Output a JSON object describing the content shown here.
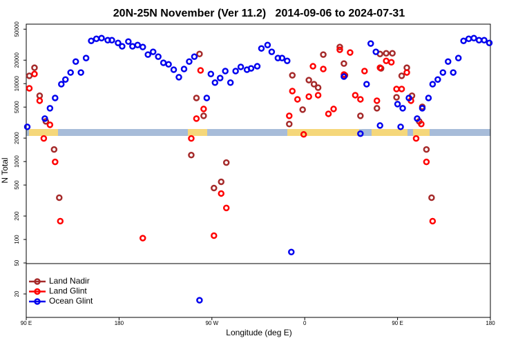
{
  "chart_data": {
    "type": "scatter",
    "title": "20N-25N November (Ver 11.2)   2014-09-06 to 2024-07-31",
    "x_label": "Longitude (deg E)",
    "y_label": "N Total",
    "y_scale": "log",
    "grid": false,
    "legend_position": "lower left",
    "xlim": [
      90,
      540
    ],
    "xticks": [
      {
        "value": 90,
        "label": "90 E"
      },
      180,
      {
        "value": 270,
        "label": "90 W"
      },
      {
        "value": 360,
        "label": "0"
      },
      {
        "value": 450,
        "label": "90 E"
      },
      {
        "value": 540,
        "label": "180"
      }
    ],
    "ylim": [
      10,
      58000
    ],
    "yticks": [
      20,
      50,
      100,
      200,
      500,
      1000,
      2000,
      5000,
      10000,
      20000,
      50000
    ],
    "series": [
      {
        "name": "Land Nadir",
        "color": "#a52a2a",
        "x": [
          93,
          98,
          103,
          109,
          117,
          122,
          258,
          255,
          262,
          250,
          272,
          279,
          284,
          345,
          348,
          358,
          364,
          369,
          373,
          378,
          394,
          398,
          399,
          414,
          430,
          433,
          439,
          445,
          434,
          449,
          454,
          459,
          464,
          474,
          478,
          483,
          471
        ],
        "values": [
          12600,
          16000,
          7000,
          3280,
          1430,
          344,
          24000,
          6550,
          3860,
          1210,
          457,
          550,
          970,
          3030,
          12800,
          4640,
          11100,
          9840,
          8890,
          23600,
          29500,
          18100,
          12800,
          3860,
          4830,
          24000,
          24500,
          24500,
          15700,
          6680,
          12600,
          16000,
          7000,
          5030,
          1430,
          344,
          3280
        ]
      },
      {
        "name": "Land Glint",
        "color": "#ff0000",
        "x": [
          93,
          98,
          103,
          107,
          113,
          118,
          123,
          203,
          250,
          255,
          259,
          262,
          272,
          279,
          284,
          345,
          348,
          353,
          359,
          364,
          368,
          373,
          378,
          383,
          388,
          394,
          398,
          404,
          409,
          414,
          418,
          430,
          433,
          439,
          444,
          449,
          454,
          459,
          463,
          468,
          473,
          478,
          484
        ],
        "values": [
          8710,
          13300,
          6040,
          1980,
          2960,
          990,
          172,
          104,
          1980,
          3560,
          14800,
          4730,
          112,
          389,
          254,
          3860,
          8030,
          6290,
          2230,
          6820,
          16700,
          7110,
          15400,
          4100,
          4730,
          27200,
          13100,
          25100,
          7110,
          6290,
          14500,
          6040,
          16000,
          19600,
          18800,
          8530,
          8530,
          13900,
          6040,
          1980,
          3030,
          990,
          172
        ]
      },
      {
        "name": "Ocean Glint",
        "color": "#0000ee",
        "x": [
          91,
          108,
          113,
          118,
          124,
          128,
          133,
          138,
          143,
          148,
          153,
          158,
          163,
          169,
          173,
          179,
          183,
          189,
          193,
          198,
          203,
          208,
          213,
          218,
          223,
          228,
          233,
          238,
          243,
          248,
          253,
          258,
          265,
          269,
          273,
          278,
          283,
          288,
          293,
          298,
          304,
          308,
          314,
          318,
          324,
          328,
          334,
          338,
          343,
          347,
          398,
          414,
          420,
          424,
          429,
          433,
          450,
          453,
          455,
          461,
          469,
          474,
          480,
          484,
          489,
          494,
          499,
          504,
          509,
          514,
          519,
          524,
          529,
          534,
          539
        ],
        "values": [
          2790,
          3560,
          4830,
          6550,
          9840,
          11300,
          13900,
          19200,
          13900,
          21300,
          35400,
          37600,
          38400,
          36100,
          36100,
          33300,
          30100,
          34700,
          30100,
          31300,
          29500,
          23600,
          25600,
          22200,
          18500,
          17700,
          15100,
          12100,
          15400,
          19200,
          22200,
          16.6,
          6550,
          13300,
          10300,
          11800,
          14500,
          10300,
          14500,
          16400,
          15100,
          15700,
          16700,
          28300,
          31300,
          25600,
          21300,
          21300,
          19600,
          69,
          12300,
          2280,
          9840,
          32700,
          25600,
          2900,
          5460,
          2790,
          4830,
          6550,
          3560,
          4830,
          6550,
          9840,
          11300,
          13900,
          19200,
          13900,
          21300,
          35400,
          37600,
          38400,
          36100,
          36100,
          33300
        ]
      }
    ]
  }
}
